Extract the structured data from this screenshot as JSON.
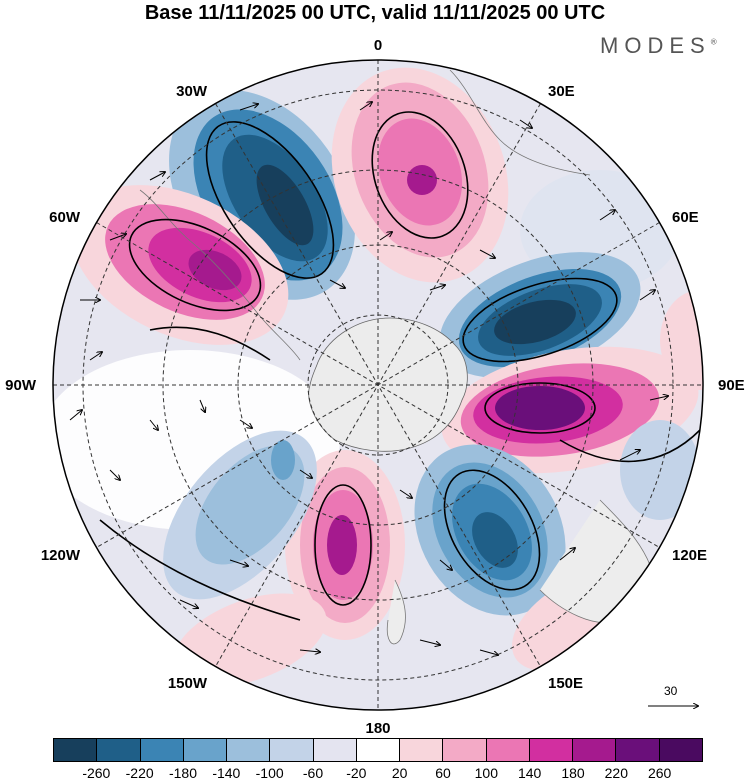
{
  "title": "Base 11/11/2025 00 UTC, valid 11/11/2025 00 UTC",
  "logo": {
    "text": "MODES",
    "mark": "®"
  },
  "longitude_labels": {
    "lon_0": "0",
    "lon_30e": "30E",
    "lon_60e": "60E",
    "lon_90e": "90E",
    "lon_120e": "120E",
    "lon_150e": "150E",
    "lon_180": "180",
    "lon_150w": "150W",
    "lon_120w": "120W",
    "lon_90w": "90W",
    "lon_60w": "60W",
    "lon_30w": "30W"
  },
  "wind_reference": {
    "value": "30"
  },
  "colorbar": {
    "ticks": [
      "-260",
      "-220",
      "-180",
      "-140",
      "-100",
      "-60",
      "-20",
      "20",
      "60",
      "100",
      "140",
      "180",
      "220",
      "260"
    ],
    "colors": [
      "#173f5c",
      "#1f5f88",
      "#3b84b4",
      "#69a3cb",
      "#9cbfdc",
      "#c3d3e8",
      "#e4e4f0",
      "#ffffff",
      "#f8d6dc",
      "#f3aac6",
      "#eb76b4",
      "#d22fa0",
      "#a51a8e",
      "#6a0f7a",
      "#4a0a60"
    ]
  },
  "map": {
    "projection": "south-polar-stereographic",
    "field": "geopotential height anomaly with wind vectors",
    "anomaly_centers": [
      {
        "name": "neg-atlantic-30w",
        "value": -260
      },
      {
        "name": "pos-0-20e",
        "value": 180
      },
      {
        "name": "pos-60w",
        "value": 220
      },
      {
        "name": "neg-60e",
        "value": -260
      },
      {
        "name": "pos-90e",
        "value": 260
      },
      {
        "name": "neg-135e",
        "value": -220
      },
      {
        "name": "pos-165w",
        "value": 220
      },
      {
        "name": "neg-130w",
        "value": -100
      }
    ]
  }
}
